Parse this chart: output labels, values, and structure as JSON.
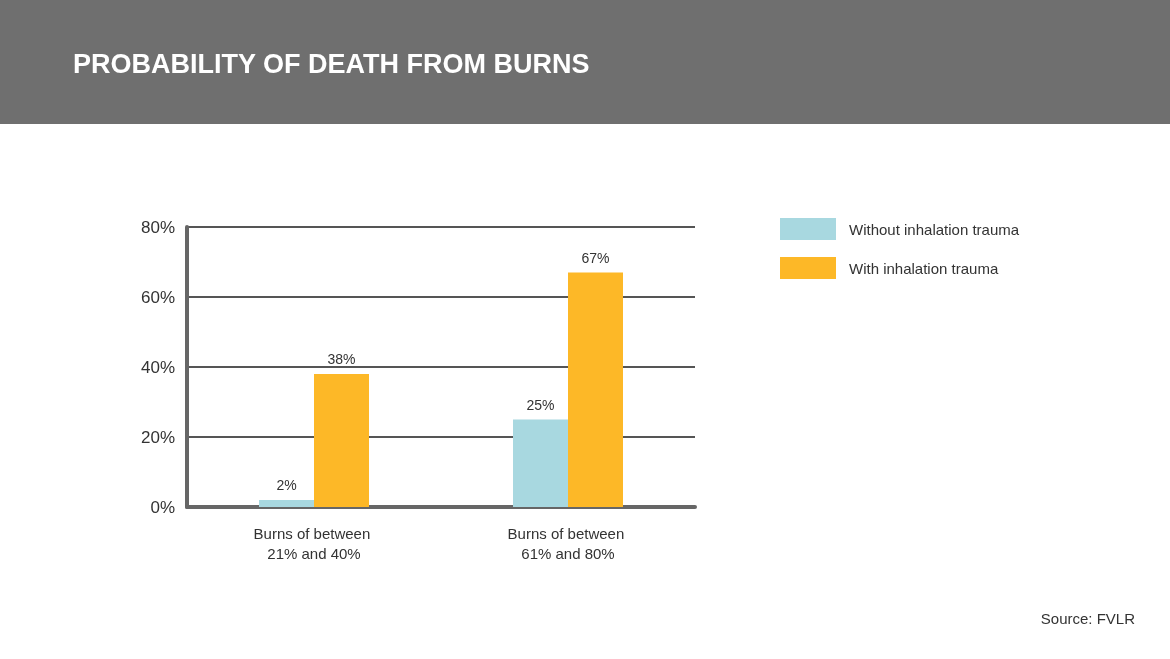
{
  "chart_data": {
    "type": "bar",
    "title": "PROBABILITY OF DEATH FROM BURNS",
    "categories": [
      "Burns of between 21% and 40%",
      "Burns of between 61% and 80%"
    ],
    "series": [
      {
        "name": "Without inhalation trauma",
        "color": "#a8d8e0",
        "values": [
          2,
          25
        ]
      },
      {
        "name": "With inhalation trauma",
        "color": "#fdb827",
        "values": [
          38,
          67
        ]
      }
    ],
    "ylim": [
      0,
      80
    ],
    "yticks": [
      {
        "value": 0,
        "label": "0%"
      },
      {
        "value": 20,
        "label": "20%"
      },
      {
        "value": 40,
        "label": "40%"
      },
      {
        "value": 60,
        "label": "60%"
      },
      {
        "value": 80,
        "label": "80%"
      }
    ],
    "value_labels": [
      [
        "2%",
        "25%"
      ],
      [
        "38%",
        "67%"
      ]
    ],
    "grid": "y",
    "legend": "top right",
    "annotations": [
      "Source: FVLR"
    ]
  }
}
